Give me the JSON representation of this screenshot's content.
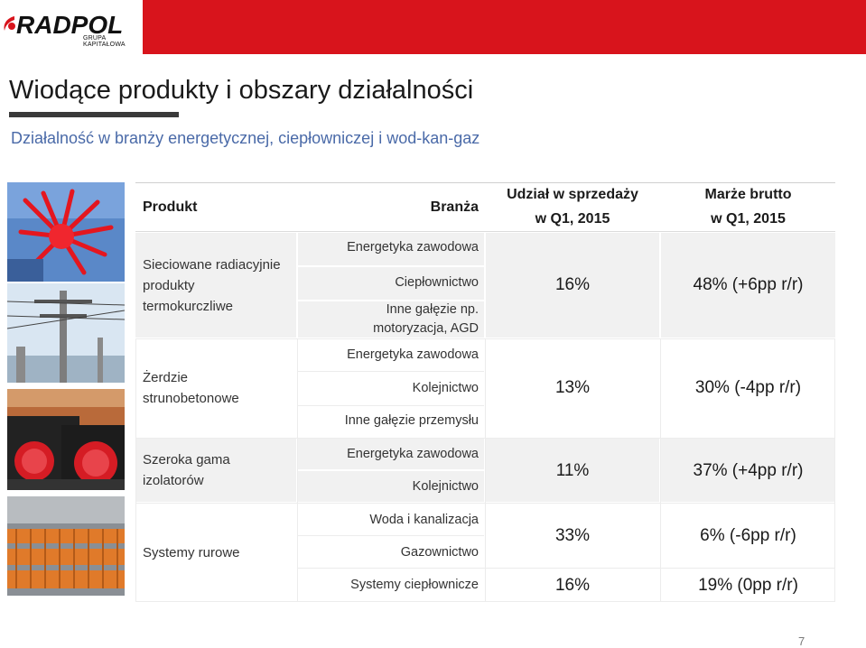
{
  "brand": {
    "logo_text": "RADPOL",
    "logo_subtext": "GRUPA KAPITAŁOWA",
    "accent": "#d8141c"
  },
  "page": {
    "title": "Wiodące produkty i obszary działalności",
    "subtitle": "Działalność w branży energetycznej, ciepłowniczej i wod-kan-gaz",
    "page_number": "7"
  },
  "table": {
    "headers": {
      "product": "Produkt",
      "branza": "Branża",
      "share_line1": "Udział w sprzedaży",
      "share_line2": "w Q1, 2015",
      "margin_line1": "Marże brutto",
      "margin_line2": "w Q1, 2015"
    },
    "rows": [
      {
        "product_lines": [
          "Sieciowane radiacyjnie",
          "produkty",
          "termokurczliwe"
        ],
        "branze": [
          "Energetyka zawodowa",
          "Ciepłownictwo",
          "Inne gałęzie np.",
          "motoryzacja, AGD"
        ],
        "share": "16%",
        "margin": "48% (+6pp r/r)"
      },
      {
        "product_lines": [
          "Żerdzie",
          "strunobetonowe"
        ],
        "branze": [
          "Energetyka zawodowa",
          "Kolejnictwo",
          "Inne gałęzie przemysłu"
        ],
        "share": "13%",
        "margin": "30% (-4pp r/r)"
      },
      {
        "product_lines": [
          "Szeroka gama",
          "izolatorów"
        ],
        "branze": [
          "Energetyka zawodowa",
          "Kolejnictwo"
        ],
        "share": "11%",
        "margin": "37% (+4pp r/r)"
      },
      {
        "product_lines": [
          "Systemy rurowe"
        ],
        "branze": [
          "Woda i kanalizacja",
          "Gazownictwo",
          "Systemy ciepłownicze"
        ],
        "shares": [
          "33%",
          "16%"
        ],
        "margins": [
          "6% (-6pp r/r)",
          "19% (0pp r/r)"
        ]
      }
    ]
  },
  "photos": [
    "radiation-crosslinked-product-photo",
    "concrete-pole-photo",
    "insulator-photo",
    "pipe-systems-photo"
  ]
}
